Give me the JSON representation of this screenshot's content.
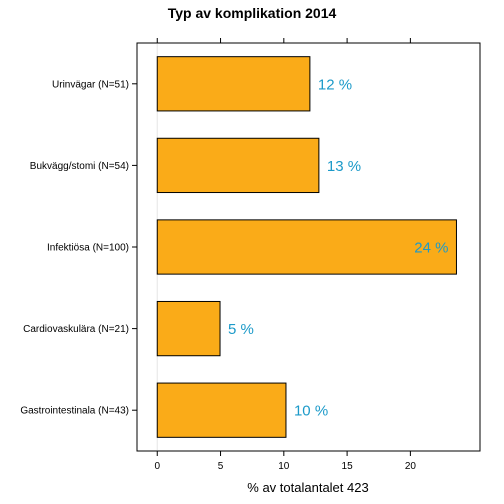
{
  "chart_data": {
    "type": "bar",
    "orientation": "horizontal",
    "title": "Typ av komplikation 2014",
    "xlabel": "% av totalantalet 423",
    "ylabel": "",
    "categories": [
      "Urinvägar (N=51)",
      "Bukvägg/stomi (N=54)",
      "Infektiösa (N=100)",
      "Cardiovaskulära (N=21)",
      "Gastrointestinala (N=43)"
    ],
    "values": [
      12.06,
      12.77,
      23.64,
      4.96,
      10.17
    ],
    "data_labels": [
      "12 %",
      "13 %",
      "24 %",
      "5 %",
      "10 %"
    ],
    "xlim": [
      -1.6,
      25.5
    ],
    "xticks": [
      0,
      5,
      10,
      15,
      20
    ],
    "xtick_labels": [
      "0",
      "5",
      "10",
      "15",
      "20"
    ],
    "grid": false,
    "legend": "none",
    "colors": {
      "bar_fill": "#FAAB18",
      "bar_stroke": "#000000",
      "data_label": "#1C9AC9",
      "zero_line": "#E6E6E6"
    }
  }
}
